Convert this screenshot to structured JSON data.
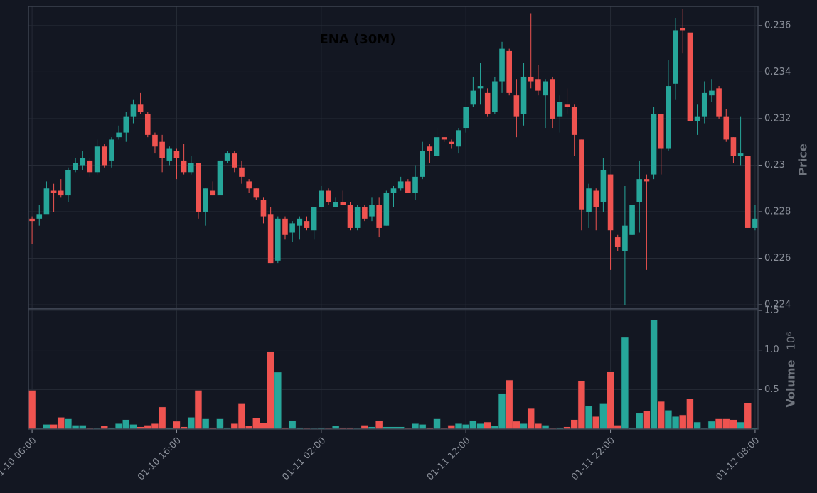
{
  "chart_data": {
    "type": "candlestick",
    "title": "ENA (30M)",
    "ylabel": "Price",
    "up_color": "#26a69a",
    "down_color": "#ef5350",
    "grid": true,
    "xlim": [
      -0.5,
      100.4
    ],
    "xticks": [
      {
        "value": 0,
        "label": "01-10 06:00"
      },
      {
        "value": 20,
        "label": "01-10 16:00"
      },
      {
        "value": 40,
        "label": "01-11 02:00"
      },
      {
        "value": 60,
        "label": "01-11 12:00"
      },
      {
        "value": 80,
        "label": "01-11 22:00"
      },
      {
        "value": 100,
        "label": "01-12 08:00"
      }
    ],
    "ylim": [
      0.22385,
      0.23682
    ],
    "yticks": [
      0.224,
      0.226,
      0.228,
      0.23,
      0.232,
      0.234,
      0.236
    ],
    "open": [
      0.2277,
      0.2277,
      0.2279,
      0.2289,
      0.2289,
      0.2287,
      0.2298,
      0.23,
      0.2302,
      0.2297,
      0.2308,
      0.2302,
      0.2312,
      0.2314,
      0.2321,
      0.2326,
      0.2322,
      0.2313,
      0.231,
      0.2302,
      0.2306,
      0.2302,
      0.2297,
      0.2301,
      0.228,
      0.2289,
      0.2287,
      0.2302,
      0.2305,
      0.2299,
      0.2293,
      0.229,
      0.2285,
      0.2279,
      0.2259,
      0.2277,
      0.2271,
      0.2274,
      0.2276,
      0.2272,
      0.2282,
      0.2289,
      0.2282,
      0.2284,
      0.2283,
      0.2273,
      0.2282,
      0.2278,
      0.2283,
      0.2274,
      0.2288,
      0.229,
      0.2293,
      0.2288,
      0.2295,
      0.2308,
      0.2304,
      0.2312,
      0.231,
      0.2308,
      0.2316,
      0.2326,
      0.2333,
      0.2331,
      0.2323,
      0.2336,
      0.2349,
      0.233,
      0.2322,
      0.2338,
      0.2337,
      0.233,
      0.2337,
      0.2321,
      0.2326,
      0.2325,
      0.2311,
      0.228,
      0.2289,
      0.2284,
      0.2296,
      0.2269,
      0.2263,
      0.227,
      0.2284,
      0.2294,
      0.2296,
      0.2322,
      0.2307,
      0.2335,
      0.2359,
      0.2357,
      0.2319,
      0.2321,
      0.233,
      0.2333,
      0.2321,
      0.2312,
      0.2304,
      0.2304,
      0.2273
    ],
    "high": [
      0.2278,
      0.2283,
      0.2293,
      0.2292,
      0.2294,
      0.2299,
      0.2303,
      0.2306,
      0.2303,
      0.2311,
      0.2309,
      0.2312,
      0.2317,
      0.2323,
      0.2328,
      0.2331,
      0.2323,
      0.2314,
      0.2313,
      0.2308,
      0.2307,
      0.2309,
      0.2304,
      0.2301,
      0.229,
      0.2293,
      0.2302,
      0.2306,
      0.2306,
      0.2302,
      0.2294,
      0.229,
      0.2286,
      0.2282,
      0.2278,
      0.2278,
      0.2276,
      0.2278,
      0.2278,
      0.2282,
      0.2291,
      0.229,
      0.2286,
      0.2289,
      0.2284,
      0.2283,
      0.2283,
      0.2286,
      0.2286,
      0.2289,
      0.2291,
      0.2295,
      0.2294,
      0.23,
      0.231,
      0.2309,
      0.2316,
      0.2312,
      0.2311,
      0.2316,
      0.2325,
      0.2338,
      0.2344,
      0.2333,
      0.2338,
      0.2353,
      0.235,
      0.2337,
      0.2344,
      0.2365,
      0.2343,
      0.2337,
      0.2338,
      0.233,
      0.2333,
      0.2326,
      0.2311,
      0.2292,
      0.229,
      0.2303,
      0.2296,
      0.227,
      0.2291,
      0.2283,
      0.2302,
      0.2296,
      0.2325,
      0.2322,
      0.2345,
      0.2363,
      0.2367,
      0.2357,
      0.2326,
      0.2336,
      0.2337,
      0.2334,
      0.2324,
      0.2312,
      0.2321,
      0.2304,
      0.2283
    ],
    "low": [
      0.2266,
      0.2274,
      0.228,
      0.228,
      0.2286,
      0.2284,
      0.2297,
      0.2298,
      0.2295,
      0.2296,
      0.2299,
      0.2299,
      0.2311,
      0.231,
      0.2318,
      0.2322,
      0.2312,
      0.2305,
      0.2297,
      0.23,
      0.2294,
      0.2296,
      0.2296,
      0.2277,
      0.2274,
      0.2287,
      0.2287,
      0.2301,
      0.2297,
      0.2292,
      0.2288,
      0.2285,
      0.2275,
      0.2258,
      0.2258,
      0.2268,
      0.2267,
      0.2268,
      0.2272,
      0.2268,
      0.2282,
      0.2283,
      0.2282,
      0.2283,
      0.2272,
      0.2272,
      0.2276,
      0.2276,
      0.2269,
      0.2274,
      0.2282,
      0.2289,
      0.2288,
      0.2285,
      0.2294,
      0.2301,
      0.2303,
      0.231,
      0.2307,
      0.2305,
      0.2314,
      0.2325,
      0.2326,
      0.2321,
      0.2322,
      0.2331,
      0.233,
      0.2312,
      0.2317,
      0.2333,
      0.233,
      0.2316,
      0.2316,
      0.2314,
      0.2322,
      0.2304,
      0.2272,
      0.2273,
      0.2272,
      0.228,
      0.2255,
      0.2263,
      0.224,
      0.227,
      0.2271,
      0.2255,
      0.2294,
      0.2296,
      0.2306,
      0.2328,
      0.2348,
      0.2319,
      0.2313,
      0.2318,
      0.2327,
      0.232,
      0.231,
      0.2301,
      0.23,
      0.2273,
      0.2272
    ],
    "close": [
      0.2276,
      0.2279,
      0.229,
      0.2288,
      0.2287,
      0.2298,
      0.2301,
      0.2303,
      0.2297,
      0.2308,
      0.23,
      0.2311,
      0.2314,
      0.2321,
      0.2326,
      0.2323,
      0.2313,
      0.2308,
      0.2303,
      0.2307,
      0.2303,
      0.2297,
      0.2301,
      0.228,
      0.229,
      0.2287,
      0.2302,
      0.2305,
      0.2299,
      0.2295,
      0.229,
      0.2286,
      0.2278,
      0.2258,
      0.2277,
      0.227,
      0.2275,
      0.2277,
      0.2273,
      0.2282,
      0.2289,
      0.2284,
      0.2284,
      0.2283,
      0.2273,
      0.2282,
      0.2277,
      0.2283,
      0.2273,
      0.2288,
      0.229,
      0.2293,
      0.2288,
      0.2295,
      0.2306,
      0.2306,
      0.2312,
      0.2311,
      0.2309,
      0.2315,
      0.2325,
      0.2332,
      0.2334,
      0.2322,
      0.2336,
      0.235,
      0.2331,
      0.2321,
      0.2338,
      0.2336,
      0.2332,
      0.2336,
      0.232,
      0.2327,
      0.2325,
      0.2313,
      0.2281,
      0.229,
      0.2282,
      0.2298,
      0.2272,
      0.2265,
      0.2274,
      0.2283,
      0.2294,
      0.2293,
      0.2322,
      0.2307,
      0.2334,
      0.2358,
      0.2358,
      0.2319,
      0.2321,
      0.2331,
      0.2332,
      0.2321,
      0.2311,
      0.2304,
      0.2305,
      0.2273,
      0.2277
    ],
    "volume": {
      "ylabel": "Volume",
      "offset_label": "10⁶",
      "ylim": [
        0,
        1.518
      ],
      "yticks": [
        0.5,
        {
          "value": 1,
          "label": "1.0"
        },
        1.5
      ],
      "values": [
        0.49,
        0.01,
        0.06,
        0.06,
        0.15,
        0.13,
        0.05,
        0.05,
        0.01,
        0.01,
        0.04,
        0.02,
        0.07,
        0.12,
        0.06,
        0.03,
        0.05,
        0.07,
        0.28,
        0.02,
        0.1,
        0.03,
        0.15,
        0.49,
        0.13,
        0.02,
        0.13,
        0.02,
        0.07,
        0.32,
        0.04,
        0.14,
        0.08,
        0.98,
        0.72,
        0.02,
        0.11,
        0.02,
        0.01,
        0.01,
        0.02,
        0.01,
        0.04,
        0.02,
        0.02,
        0.01,
        0.05,
        0.03,
        0.11,
        0.03,
        0.03,
        0.03,
        0.01,
        0.07,
        0.06,
        0.02,
        0.13,
        0.01,
        0.05,
        0.07,
        0.06,
        0.11,
        0.07,
        0.09,
        0.04,
        0.45,
        0.62,
        0.1,
        0.07,
        0.26,
        0.07,
        0.05,
        0.01,
        0.02,
        0.03,
        0.12,
        0.61,
        0.29,
        0.16,
        0.32,
        0.73,
        0.05,
        1.16,
        0.02,
        0.2,
        0.23,
        1.38,
        0.35,
        0.24,
        0.16,
        0.18,
        0.38,
        0.09,
        0.01,
        0.1,
        0.13,
        0.13,
        0.12,
        0.09,
        0.33,
        0.02
      ]
    }
  }
}
